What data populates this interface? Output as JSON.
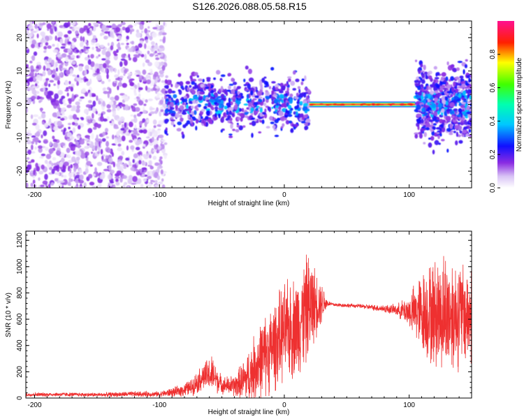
{
  "title": "S126.2026.088.05.58.R15",
  "chart_data": [
    {
      "type": "heatmap",
      "name": "spectrogram",
      "xlabel": "Height of straight line (km)",
      "ylabel": "Frequency (Hz)",
      "xlim": [
        -207,
        150
      ],
      "ylim": [
        -25,
        25
      ],
      "xticks": [
        -200,
        -100,
        0,
        100
      ],
      "yticks": [
        -20,
        -10,
        0,
        10,
        20
      ],
      "colorbar": {
        "label": "Normalized spectral amplitude",
        "range": [
          0,
          1
        ],
        "ticks": [
          0.0,
          0.2,
          0.4,
          0.6,
          0.8
        ]
      },
      "features": [
        {
          "x_range": [
            -207,
            -95
          ],
          "description": "sparse low-amplitude noise across all frequencies",
          "amplitude": 0.1
        },
        {
          "x_range": [
            -95,
            20
          ],
          "center_hz": 0,
          "spread_hz": 8,
          "amplitude": 0.25
        },
        {
          "x_range": [
            20,
            105
          ],
          "center_hz": 0,
          "spread_hz": 1,
          "amplitude": 0.95
        },
        {
          "x_range": [
            105,
            150
          ],
          "center_hz": 0,
          "spread_hz": 10,
          "amplitude": 0.25
        }
      ]
    },
    {
      "type": "line",
      "name": "snr",
      "xlabel": "Height of straight line (km)",
      "ylabel": "SNR (10 * v/v)",
      "xlim": [
        -207,
        150
      ],
      "ylim": [
        0,
        1270
      ],
      "xticks": [
        -200,
        -100,
        0,
        100
      ],
      "yticks": [
        0,
        200,
        400,
        600,
        800,
        1000,
        1200
      ],
      "color": "#ee3030",
      "envelope": {
        "x": [
          -207,
          -180,
          -150,
          -120,
          -100,
          -85,
          -75,
          -65,
          -58,
          -50,
          -40,
          -30,
          -20,
          -10,
          0,
          10,
          20,
          25,
          30,
          35,
          40,
          50,
          60,
          70,
          80,
          90,
          100,
          110,
          120,
          130,
          140,
          150
        ],
        "mean": [
          25,
          28,
          25,
          30,
          30,
          50,
          80,
          160,
          180,
          100,
          90,
          150,
          280,
          380,
          500,
          550,
          700,
          720,
          730,
          720,
          710,
          705,
          700,
          690,
          680,
          670,
          660,
          650,
          640,
          650,
          640,
          630
        ],
        "amplitude": [
          15,
          15,
          15,
          20,
          20,
          40,
          60,
          100,
          140,
          60,
          80,
          180,
          280,
          320,
          350,
          380,
          400,
          250,
          150,
          20,
          15,
          15,
          15,
          20,
          30,
          40,
          120,
          300,
          400,
          450,
          400,
          350
        ]
      }
    }
  ]
}
